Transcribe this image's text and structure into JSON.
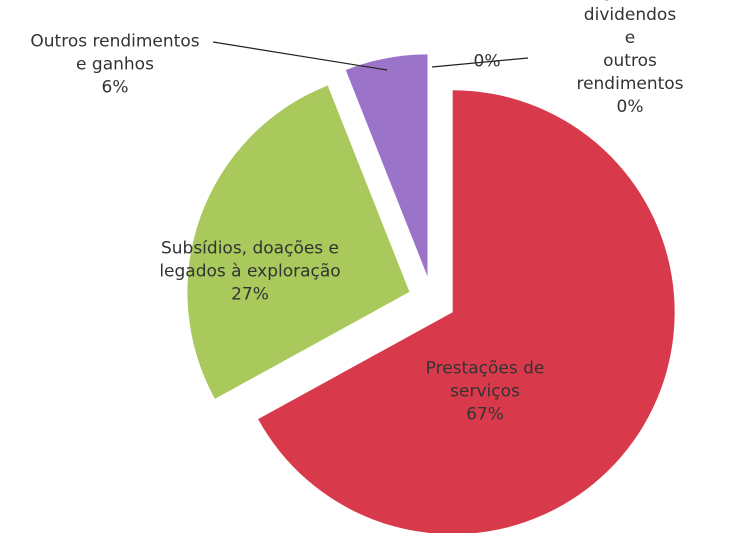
{
  "chart_data": {
    "type": "pie",
    "categories": [
      "Prestações de\nserviços",
      "Subsídios, doações e\nlegados à exploração",
      "Outros rendimentos\ne ganhos",
      "Juros, dividendos e\noutros rendimentos",
      null
    ],
    "values": [
      67,
      27,
      6,
      0,
      0
    ],
    "value_labels": [
      "67%",
      "27%",
      "6%",
      "0%",
      "0%"
    ],
    "colors": [
      "#d93a4b",
      "#a9c95c",
      "#9b74c9",
      "#4f81bd",
      "#f79646"
    ]
  }
}
